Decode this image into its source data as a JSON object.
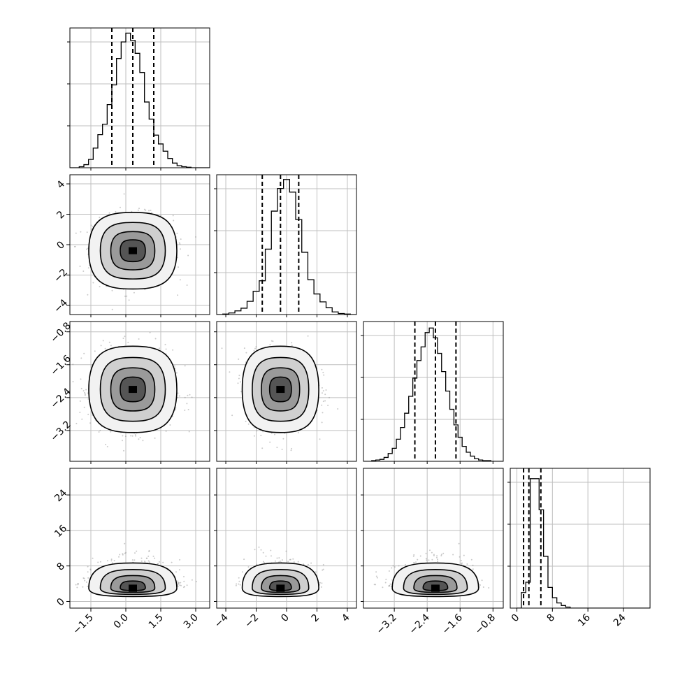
{
  "chart_data": {
    "type": "corner",
    "title": "",
    "grid": true,
    "parameters": [
      {
        "hist": {
          "edges": [
            -2.4,
            -2.2,
            -2.0,
            -1.8,
            -1.6,
            -1.4,
            -1.2,
            -1.0,
            -0.8,
            -0.6,
            -0.4,
            -0.2,
            0.0,
            0.2,
            0.4,
            0.6,
            0.8,
            1.0,
            1.2,
            1.4,
            1.6,
            1.8,
            2.0,
            2.2,
            2.4,
            2.6,
            2.8,
            3.0,
            3.2,
            3.4,
            3.6
          ],
          "counts": [
            0,
            0,
            2,
            6,
            16,
            38,
            64,
            84,
            122,
            160,
            211,
            243,
            260,
            246,
            221,
            184,
            127,
            94,
            63,
            46,
            32,
            18,
            9,
            4,
            2,
            1,
            0,
            0,
            0,
            0
          ],
          "ylim": [
            0,
            270
          ],
          "quantiles": [
            -0.6,
            0.3,
            1.2
          ]
        },
        "range": [
          -2.4,
          3.6
        ],
        "ticks": [
          -1.5,
          0.0,
          1.5,
          3.0
        ],
        "tick_labels": [
          "−1.5",
          "0.0",
          "1.5",
          "3.0"
        ]
      },
      {
        "hist": {
          "edges": [
            -4.6,
            -4.2,
            -3.8,
            -3.4,
            -3.0,
            -2.6,
            -2.2,
            -1.8,
            -1.4,
            -1.0,
            -0.6,
            -0.2,
            0.2,
            0.6,
            1.0,
            1.4,
            1.8,
            2.2,
            2.6,
            3.0,
            3.4,
            3.8,
            4.2,
            4.6
          ],
          "counts": [
            0,
            1,
            3,
            7,
            12,
            25,
            44,
            64,
            124,
            196,
            239,
            256,
            232,
            180,
            118,
            66,
            39,
            24,
            13,
            5,
            2,
            1,
            0
          ],
          "ylim": [
            0,
            265
          ],
          "quantiles": [
            -1.6,
            -0.4,
            0.8
          ]
        },
        "range": [
          -4.6,
          4.6
        ],
        "ticks": [
          -4,
          -2,
          0,
          2,
          4
        ],
        "tick_labels": [
          "−4",
          "−2",
          "0",
          "2",
          "4"
        ]
      },
      {
        "hist": {
          "edges": [
            -3.95,
            -3.85,
            -3.75,
            -3.65,
            -3.55,
            -3.45,
            -3.35,
            -3.25,
            -3.15,
            -3.05,
            -2.95,
            -2.85,
            -2.75,
            -2.65,
            -2.55,
            -2.45,
            -2.35,
            -2.25,
            -2.15,
            -2.05,
            -1.95,
            -1.85,
            -1.75,
            -1.65,
            -1.55,
            -1.45,
            -1.35,
            -1.25,
            -1.15,
            -1.05,
            -0.95,
            -0.85,
            -0.75,
            -0.65,
            -0.55
          ],
          "counts": [
            0,
            0,
            1,
            2,
            3,
            6,
            12,
            20,
            34,
            52,
            74,
            100,
            128,
            155,
            176,
            198,
            205,
            190,
            166,
            138,
            108,
            80,
            56,
            37,
            23,
            14,
            8,
            4,
            2,
            1,
            1,
            0,
            0,
            0
          ],
          "ylim": [
            0,
            215
          ],
          "quantiles": [
            -2.7,
            -2.2,
            -1.7
          ]
        },
        "range": [
          -3.95,
          -0.55
        ],
        "ticks": [
          -3.2,
          -2.4,
          -1.6,
          -0.8
        ],
        "tick_labels": [
          "−3.2",
          "−2.4",
          "−1.6",
          "−0.8"
        ]
      },
      {
        "hist": {
          "edges": [
            0,
            1,
            2,
            3,
            4,
            5,
            6,
            7,
            8,
            9,
            10,
            11,
            12,
            13,
            14,
            15,
            16,
            17,
            18,
            19,
            20,
            21,
            22,
            23,
            24,
            25,
            26,
            27,
            28,
            29,
            30
          ],
          "counts": [
            0,
            3,
            5,
            25,
            25,
            19,
            10,
            4,
            2,
            1,
            0.5,
            0.2,
            0,
            0,
            0,
            0,
            0,
            0,
            0,
            0,
            0,
            0,
            0,
            0,
            0,
            0,
            0,
            0,
            0,
            0
          ],
          "ylim": [
            0,
            27
          ],
          "quantiles": [
            1.5,
            2.7,
            5.4
          ]
        },
        "range": [
          -1.5,
          30
        ],
        "ticks": [
          0,
          8,
          16,
          24
        ],
        "tick_labels": [
          "0",
          "8",
          "16",
          "24"
        ]
      }
    ],
    "pairs": [
      {
        "x": 0,
        "y": 1,
        "center": [
          0.3,
          -0.4
        ],
        "spread": [
          0.9,
          1.2
        ]
      },
      {
        "x": 0,
        "y": 2,
        "center": [
          0.3,
          -2.2
        ],
        "spread": [
          0.9,
          0.5
        ]
      },
      {
        "x": 1,
        "y": 2,
        "center": [
          -0.4,
          -2.2
        ],
        "spread": [
          1.2,
          0.5
        ]
      },
      {
        "x": 0,
        "y": 3,
        "center": [
          0.3,
          3.0
        ],
        "spread": [
          0.9,
          2.0
        ]
      },
      {
        "x": 1,
        "y": 3,
        "center": [
          -0.4,
          3.0
        ],
        "spread": [
          1.2,
          2.0
        ]
      },
      {
        "x": 2,
        "y": 3,
        "center": [
          -2.2,
          3.0
        ],
        "spread": [
          0.5,
          2.0
        ]
      }
    ]
  }
}
